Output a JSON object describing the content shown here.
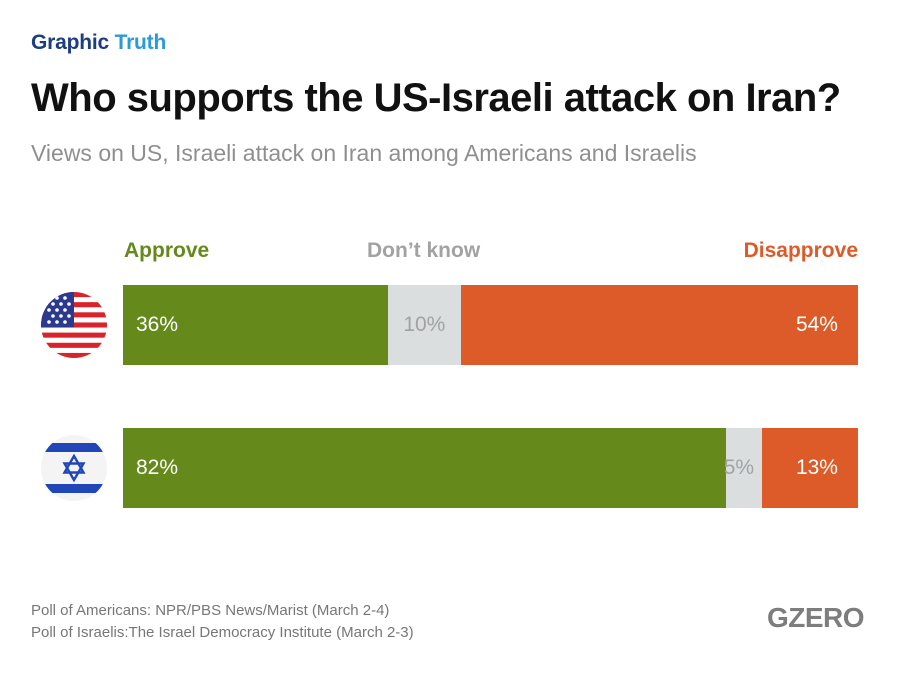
{
  "brand": {
    "first": "Graphic",
    "second": "Truth"
  },
  "title": "Who supports the US-Israeli attack on Iran?",
  "subtitle": "Views on US, Israeli attack on Iran among Americans and Israelis",
  "colors": {
    "approve": "#65891b",
    "dont_know": "#dbdedf",
    "disapprove": "#dc5b29",
    "dont_know_text": "#a2a2a2"
  },
  "chart_data": {
    "type": "bar",
    "stacked": true,
    "orientation": "horizontal",
    "normalized_percent": true,
    "categories": [
      "United States",
      "Israel"
    ],
    "series": [
      {
        "name": "Approve",
        "values": [
          36,
          82
        ],
        "labels": [
          "36%",
          "82%"
        ]
      },
      {
        "name": "Don’t know",
        "values": [
          10,
          5
        ],
        "labels": [
          "10%",
          "5%"
        ]
      },
      {
        "name": "Disapprove",
        "values": [
          54,
          13
        ],
        "labels": [
          "54%",
          "13%"
        ]
      }
    ],
    "legend": "top"
  },
  "rows": [
    {
      "flag_icon": "us-flag-icon"
    },
    {
      "flag_icon": "israel-flag-icon"
    }
  ],
  "footer": {
    "source_us": "Poll of Americans: NPR/PBS News/Marist (March 2-4)",
    "source_il": "Poll of Israelis:The Israel Democracy Institute (March 2-3)",
    "logo": "GZERO"
  }
}
